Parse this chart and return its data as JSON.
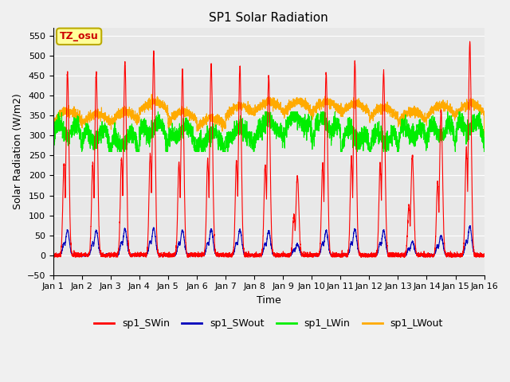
{
  "title": "SP1 Solar Radiation",
  "xlabel": "Time",
  "ylabel": "Solar Radiation (W/m2)",
  "ylim": [
    -50,
    570
  ],
  "yticks": [
    -50,
    0,
    50,
    100,
    150,
    200,
    250,
    300,
    350,
    400,
    450,
    500,
    550
  ],
  "xtick_labels": [
    "Jan 1",
    "Jan 2",
    "Jan 3",
    "Jan 4",
    "Jan 5",
    "Jan 6",
    "Jan 7",
    "Jan 8",
    "Jan 9",
    "Jan 10",
    "Jan 11",
    "Jan 12",
    "Jan 13",
    "Jan 14",
    "Jan 15",
    "Jan 16"
  ],
  "colors": {
    "SWin": "#ff0000",
    "SWout": "#0000bb",
    "LWin": "#00ee00",
    "LWout": "#ffaa00"
  },
  "legend_labels": [
    "sp1_SWin",
    "sp1_SWout",
    "sp1_LWin",
    "sp1_LWout"
  ],
  "annotation_text": "TZ_osu",
  "annotation_bg": "#ffff99",
  "annotation_border": "#bbaa00",
  "bg_color": "#e8e8e8",
  "n_days": 15,
  "pts_per_day": 288,
  "seed": 42
}
